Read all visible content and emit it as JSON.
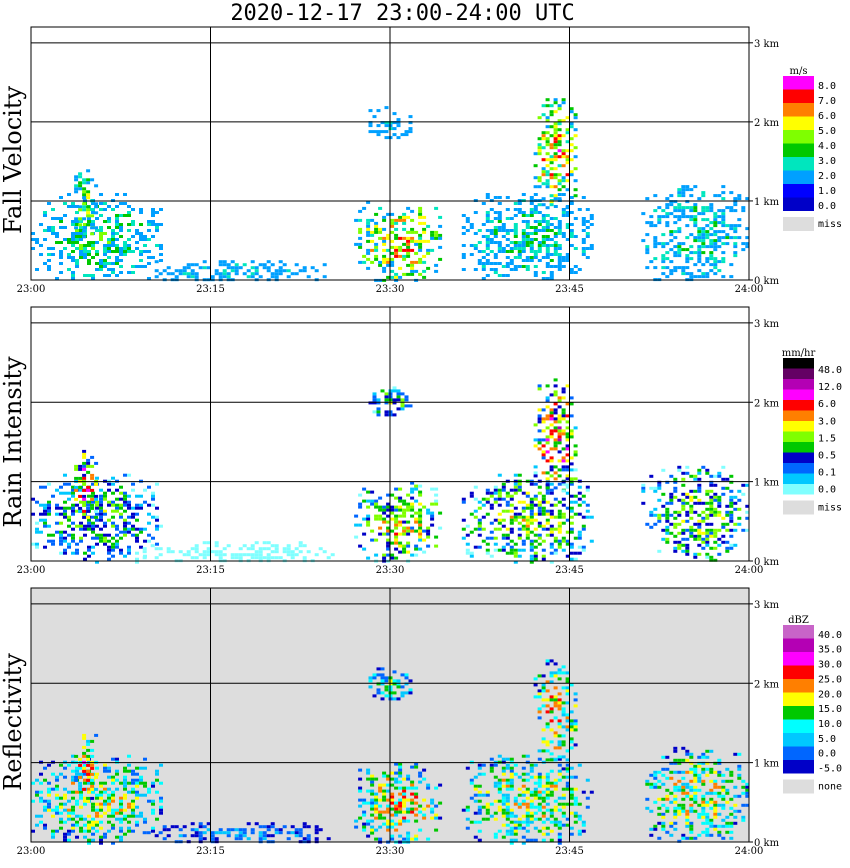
{
  "title": "2020-12-17   23:00-24:00 UTC",
  "chart_data": [
    {
      "type": "heatmap",
      "name": "fall-velocity",
      "ylabel": "Fall Velocity",
      "x_ticks": [
        "23:00",
        "23:15",
        "23:30",
        "23:45",
        "24:00"
      ],
      "y_ticks": [
        "0 km",
        "1 km",
        "2 km",
        "3 km"
      ],
      "ylim_km": [
        0,
        3.2
      ],
      "legend": {
        "unit": "m/s",
        "levels": [
          "8.0",
          "7.0",
          "6.0",
          "5.0",
          "4.0",
          "3.0",
          "2.0",
          "1.0",
          "0.0"
        ],
        "colors": [
          "#ff00ff",
          "#ff0000",
          "#ff7f00",
          "#ffff00",
          "#7fff00",
          "#00c800",
          "#00e6be",
          "#00a0ff",
          "#0000ff",
          "#0000c8"
        ],
        "missing_label": "miss",
        "missing_color": "#dddddd"
      },
      "background": "#ffffff",
      "echoes": [
        {
          "t0": 0.0,
          "t1": 0.18,
          "z0": 0.0,
          "z1": 1.1,
          "peak": 0.35
        },
        {
          "t0": 0.06,
          "t1": 0.09,
          "z0": 0.5,
          "z1": 1.4,
          "peak": 0.45
        },
        {
          "t0": 0.15,
          "t1": 0.42,
          "z0": 0.0,
          "z1": 0.25,
          "peak": 0.25
        },
        {
          "t0": 0.45,
          "t1": 0.57,
          "z0": 0.0,
          "z1": 1.0,
          "peak": 0.55
        },
        {
          "t0": 0.47,
          "t1": 0.53,
          "z0": 1.8,
          "z1": 2.2,
          "peak": 0.2
        },
        {
          "t0": 0.6,
          "t1": 0.78,
          "z0": 0.0,
          "z1": 1.1,
          "peak": 0.3
        },
        {
          "t0": 0.7,
          "t1": 0.76,
          "z0": 0.9,
          "z1": 2.3,
          "peak": 0.6
        },
        {
          "t0": 0.85,
          "t1": 1.0,
          "z0": 0.0,
          "z1": 1.2,
          "peak": 0.3
        }
      ]
    },
    {
      "type": "heatmap",
      "name": "rain-intensity",
      "ylabel": "Rain Intensity",
      "x_ticks": [
        "23:00",
        "23:15",
        "23:30",
        "23:45",
        "24:00"
      ],
      "y_ticks": [
        "0 km",
        "1 km",
        "2 km",
        "3 km"
      ],
      "ylim_km": [
        0,
        3.2
      ],
      "legend": {
        "unit": "mm/hr",
        "levels": [
          "48.0",
          "12.0",
          "6.0",
          "3.0",
          "1.5",
          "0.5",
          "0.1",
          "0.0"
        ],
        "colors": [
          "#000000",
          "#640064",
          "#b400b4",
          "#ff00ff",
          "#ff0000",
          "#ff7f00",
          "#ffff00",
          "#7fff00",
          "#00c800",
          "#0000c8",
          "#0066ff",
          "#00c8ff",
          "#80ffff"
        ],
        "missing_label": "miss",
        "missing_color": "#dddddd"
      },
      "background": "#ffffff",
      "echoes": [
        {
          "t0": 0.0,
          "t1": 0.18,
          "z0": 0.0,
          "z1": 1.1,
          "peak": 0.3
        },
        {
          "t0": 0.06,
          "t1": 0.09,
          "z0": 0.5,
          "z1": 1.4,
          "peak": 0.5
        },
        {
          "t0": 0.15,
          "t1": 0.42,
          "z0": 0.0,
          "z1": 0.25,
          "peak": 0.05
        },
        {
          "t0": 0.45,
          "t1": 0.57,
          "z0": 0.0,
          "z1": 1.0,
          "peak": 0.4
        },
        {
          "t0": 0.47,
          "t1": 0.53,
          "z0": 1.8,
          "z1": 2.2,
          "peak": 0.3
        },
        {
          "t0": 0.6,
          "t1": 0.78,
          "z0": 0.0,
          "z1": 1.1,
          "peak": 0.35
        },
        {
          "t0": 0.7,
          "t1": 0.76,
          "z0": 0.9,
          "z1": 2.3,
          "peak": 0.5
        },
        {
          "t0": 0.85,
          "t1": 1.0,
          "z0": 0.0,
          "z1": 1.2,
          "peak": 0.35
        }
      ]
    },
    {
      "type": "heatmap",
      "name": "reflectivity",
      "ylabel": "Reflectivity",
      "x_ticks": [
        "23:00",
        "23:15",
        "23:30",
        "23:45",
        "24:00"
      ],
      "y_ticks": [
        "0 km",
        "1 km",
        "2 km",
        "3 km"
      ],
      "ylim_km": [
        0,
        3.2
      ],
      "legend": {
        "unit": "dBZ",
        "levels": [
          "40.0",
          "35.0",
          "30.0",
          "25.0",
          "20.0",
          "15.0",
          "10.0",
          "5.0",
          "0.0",
          "-5.0"
        ],
        "colors": [
          "#c864c8",
          "#b400b4",
          "#ff00ff",
          "#ff0000",
          "#ff7f00",
          "#ffff00",
          "#00c800",
          "#00ffff",
          "#00c8ff",
          "#0066ff",
          "#0000c8"
        ],
        "missing_label": "none",
        "missing_color": "#dddddd"
      },
      "background": "#dddddd",
      "echoes": [
        {
          "t0": 0.0,
          "t1": 0.18,
          "z0": 0.0,
          "z1": 1.1,
          "peak": 0.4
        },
        {
          "t0": 0.06,
          "t1": 0.09,
          "z0": 0.5,
          "z1": 1.4,
          "peak": 0.5
        },
        {
          "t0": 0.15,
          "t1": 0.42,
          "z0": 0.0,
          "z1": 0.25,
          "peak": 0.15
        },
        {
          "t0": 0.45,
          "t1": 0.57,
          "z0": 0.0,
          "z1": 1.0,
          "peak": 0.45
        },
        {
          "t0": 0.47,
          "t1": 0.53,
          "z0": 1.8,
          "z1": 2.2,
          "peak": 0.3
        },
        {
          "t0": 0.6,
          "t1": 0.78,
          "z0": 0.0,
          "z1": 1.1,
          "peak": 0.4
        },
        {
          "t0": 0.7,
          "t1": 0.76,
          "z0": 0.9,
          "z1": 2.3,
          "peak": 0.45
        },
        {
          "t0": 0.85,
          "t1": 1.0,
          "z0": 0.0,
          "z1": 1.2,
          "peak": 0.4
        }
      ]
    }
  ]
}
